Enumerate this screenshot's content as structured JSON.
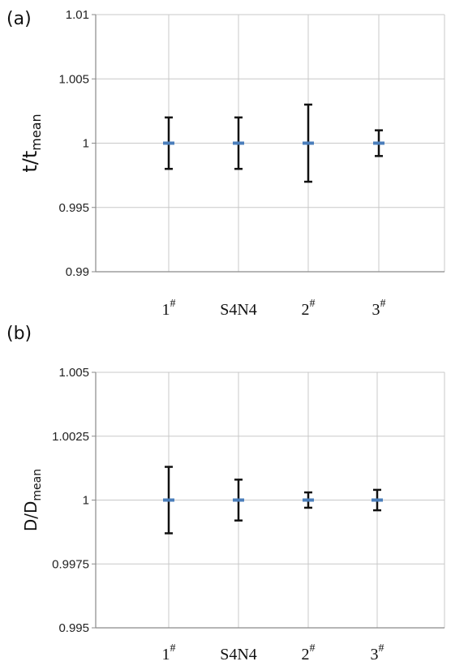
{
  "colors": {
    "grid": "#c8c8c8",
    "axis": "#8a8a8a",
    "errorbar": "#111111",
    "mean_marker": "#4a7ebb"
  },
  "chart_data": [
    {
      "panel_label": "(a)",
      "type": "scatter",
      "categories": [
        "1#",
        "S4N4",
        "2#",
        "3#"
      ],
      "category_main": [
        "1",
        "S4N4",
        "2",
        "3"
      ],
      "category_sup": [
        "#",
        "",
        "#",
        "#"
      ],
      "ylabel_main": "t/t",
      "ylabel_sub": "mean",
      "ylim": [
        0.99,
        1.01
      ],
      "yticks": [
        0.99,
        0.995,
        1,
        1.005,
        1.01
      ],
      "ytick_labels": [
        "0.99",
        "0.995",
        "1",
        "1.005",
        "1.01"
      ],
      "values": [
        1,
        1,
        1,
        1
      ],
      "error_low": [
        0.998,
        0.998,
        0.997,
        0.999
      ],
      "error_high": [
        1.002,
        1.002,
        1.003,
        1.001
      ],
      "grid": true
    },
    {
      "panel_label": "(b)",
      "type": "scatter",
      "categories": [
        "1#",
        "S4N4",
        "2#",
        "3#"
      ],
      "category_main": [
        "1",
        "S4N4",
        "2",
        "3"
      ],
      "category_sup": [
        "#",
        "",
        "#",
        "#"
      ],
      "ylabel_main": "D/D",
      "ylabel_sub": "mean",
      "ylim": [
        0.995,
        1.005
      ],
      "yticks": [
        0.995,
        0.9975,
        1,
        1.0025,
        1.005
      ],
      "ytick_labels": [
        "0.995",
        "0.9975",
        "1",
        "1.0025",
        "1.005"
      ],
      "values": [
        1,
        1,
        1,
        1
      ],
      "error_low": [
        0.9987,
        0.9992,
        0.9997,
        0.9996
      ],
      "error_high": [
        1.0013,
        1.0008,
        1.0003,
        1.0004
      ],
      "grid": true
    }
  ]
}
